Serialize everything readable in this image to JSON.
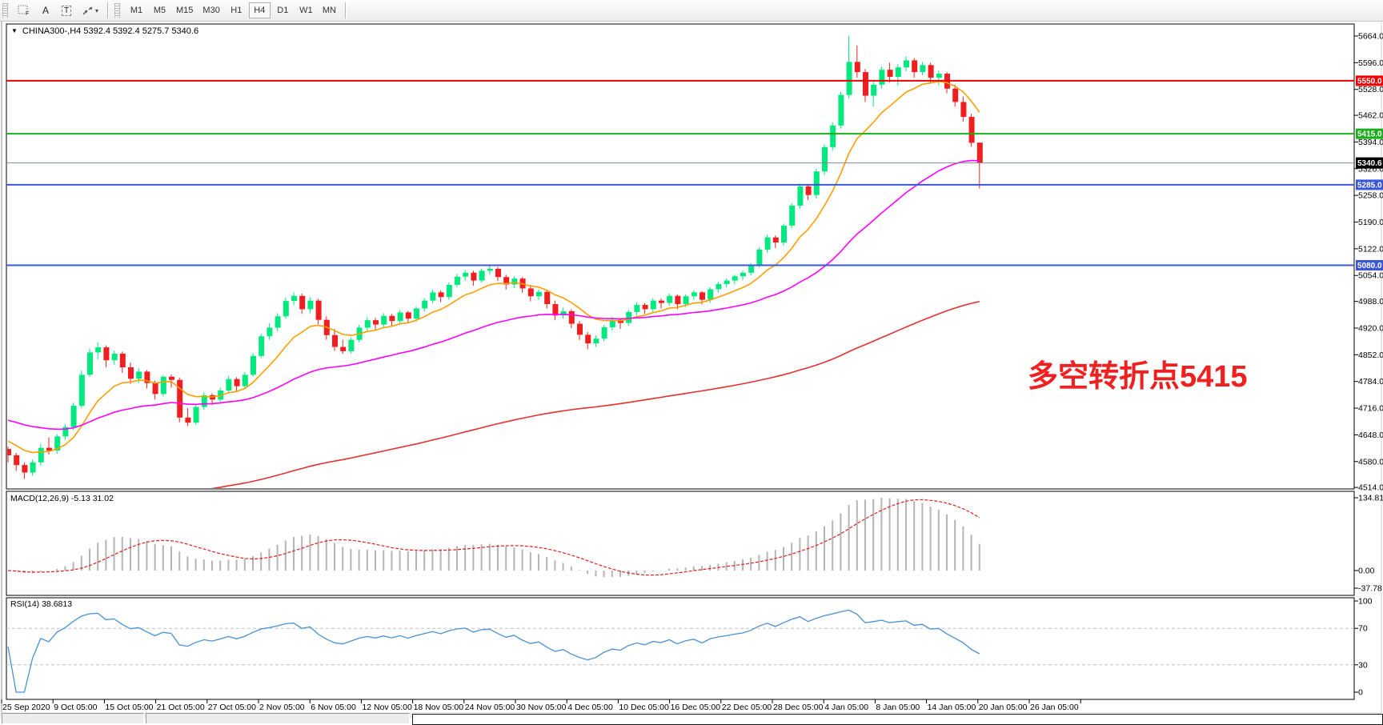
{
  "toolbar": {
    "icons": [
      {
        "name": "grid-f-icon",
        "glyph": "F"
      },
      {
        "name": "font-a-icon",
        "glyph": "A"
      },
      {
        "name": "text-t-icon",
        "glyph": "T"
      },
      {
        "name": "cursor-arrows-icon",
        "glyph": "⇲"
      },
      {
        "name": "caret-down-icon",
        "glyph": "▾"
      }
    ],
    "timeframes": [
      {
        "label": "M1"
      },
      {
        "label": "M5"
      },
      {
        "label": "M15"
      },
      {
        "label": "M30"
      },
      {
        "label": "H1"
      },
      {
        "label": "H4"
      },
      {
        "label": "D1"
      },
      {
        "label": "W1"
      },
      {
        "label": "MN"
      }
    ],
    "active_timeframe": "H4"
  },
  "chart": {
    "title_text": "CHINA300-,H4  5392.4 5392.4 5275.7 5340.6",
    "dropdown_glyph": "▼",
    "annotation": {
      "text": "多空转折点5415",
      "color": "#ef2020"
    }
  },
  "chart_data": {
    "type": "candlestick",
    "symbol": "CHINA300-",
    "period": "H4",
    "ohlc_current": {
      "open": 5392.4,
      "high": 5392.4,
      "low": 5275.7,
      "close": 5340.6
    },
    "last_price": "5340.6",
    "candle_colors": {
      "up": "#00e97e",
      "down": "#f01e1e"
    },
    "price_axis": {
      "ticks": [
        "5664.0",
        "5596.0",
        "5528.0",
        "5462.0",
        "5394.0",
        "5326.0",
        "5258.0",
        "5190.0",
        "5122.0",
        "5054.0",
        "4988.0",
        "4920.0",
        "4852.0",
        "4784.0",
        "4716.0",
        "4648.0",
        "4580.0",
        "4514.0"
      ],
      "top_value": 5664,
      "bottom_value": 4514
    },
    "hlines": [
      {
        "value": 5550.0,
        "label": "5550.0",
        "color": "#ee0000",
        "width": 2
      },
      {
        "value": 5415.0,
        "label": "5415.0",
        "color": "#1cae1c",
        "width": 2
      },
      {
        "value": 5285.0,
        "label": "5285.0",
        "color": "#3a57d7",
        "width": 2
      },
      {
        "value": 5080.0,
        "label": "5080.0",
        "color": "#3a57d7",
        "width": 2
      }
    ],
    "bid_line": {
      "value": 5340.6,
      "label": "5340.6",
      "line_color": "#808898",
      "badge_color": "#000000"
    },
    "moving_averages": [
      {
        "name": "fast-ma",
        "period": 10,
        "seed": 4640,
        "color": "#ff9e00"
      },
      {
        "name": "medium-ma",
        "period": 40,
        "seed": 4690,
        "color": "#ff00ff"
      },
      {
        "name": "slow-ma",
        "period": 150,
        "seed": 4420,
        "color": "#e43030"
      }
    ],
    "candles": [
      [
        4612,
        4618,
        4578,
        4596
      ],
      [
        4596,
        4602,
        4556,
        4571
      ],
      [
        4571,
        4578,
        4536,
        4552
      ],
      [
        4552,
        4585,
        4544,
        4578
      ],
      [
        4578,
        4625,
        4570,
        4615
      ],
      [
        4615,
        4641,
        4598,
        4608
      ],
      [
        4608,
        4650,
        4600,
        4644
      ],
      [
        4644,
        4676,
        4635,
        4668
      ],
      [
        4668,
        4730,
        4660,
        4722
      ],
      [
        4722,
        4812,
        4716,
        4801
      ],
      [
        4801,
        4868,
        4795,
        4858
      ],
      [
        4858,
        4884,
        4840,
        4871
      ],
      [
        4871,
        4876,
        4820,
        4838
      ],
      [
        4838,
        4862,
        4826,
        4855
      ],
      [
        4855,
        4860,
        4806,
        4820
      ],
      [
        4820,
        4832,
        4778,
        4791
      ],
      [
        4791,
        4818,
        4780,
        4809
      ],
      [
        4809,
        4813,
        4766,
        4780
      ],
      [
        4780,
        4786,
        4738,
        4752
      ],
      [
        4752,
        4800,
        4746,
        4796
      ],
      [
        4796,
        4802,
        4768,
        4788
      ],
      [
        4788,
        4794,
        4680,
        4692
      ],
      [
        4692,
        4716,
        4670,
        4679
      ],
      [
        4679,
        4726,
        4674,
        4719
      ],
      [
        4719,
        4756,
        4712,
        4749
      ],
      [
        4749,
        4754,
        4724,
        4738
      ],
      [
        4738,
        4768,
        4730,
        4761
      ],
      [
        4761,
        4798,
        4755,
        4790
      ],
      [
        4790,
        4795,
        4760,
        4772
      ],
      [
        4772,
        4808,
        4766,
        4801
      ],
      [
        4801,
        4856,
        4796,
        4849
      ],
      [
        4849,
        4906,
        4843,
        4899
      ],
      [
        4899,
        4932,
        4890,
        4921
      ],
      [
        4921,
        4958,
        4912,
        4950
      ],
      [
        4950,
        4998,
        4944,
        4989
      ],
      [
        4989,
        5011,
        4978,
        5002
      ],
      [
        5002,
        5008,
        4956,
        4968
      ],
      [
        4968,
        4999,
        4958,
        4990
      ],
      [
        4990,
        4994,
        4930,
        4941
      ],
      [
        4941,
        4950,
        4890,
        4902
      ],
      [
        4902,
        4918,
        4862,
        4872
      ],
      [
        4872,
        4890,
        4854,
        4861
      ],
      [
        4861,
        4896,
        4855,
        4890
      ],
      [
        4890,
        4928,
        4884,
        4921
      ],
      [
        4921,
        4948,
        4912,
        4940
      ],
      [
        4940,
        4946,
        4916,
        4929
      ],
      [
        4929,
        4958,
        4922,
        4951
      ],
      [
        4951,
        4956,
        4926,
        4938
      ],
      [
        4938,
        4966,
        4930,
        4960
      ],
      [
        4960,
        4964,
        4934,
        4944
      ],
      [
        4944,
        4975,
        4936,
        4970
      ],
      [
        4970,
        4996,
        4962,
        4990
      ],
      [
        4990,
        5018,
        4984,
        5011
      ],
      [
        5011,
        5016,
        4986,
        4999
      ],
      [
        4999,
        5036,
        4992,
        5030
      ],
      [
        5030,
        5058,
        5024,
        5051
      ],
      [
        5051,
        5068,
        5040,
        5061
      ],
      [
        5061,
        5066,
        5028,
        5041
      ],
      [
        5041,
        5072,
        5036,
        5066
      ],
      [
        5066,
        5080,
        5056,
        5071
      ],
      [
        5071,
        5076,
        5040,
        5050
      ],
      [
        5050,
        5056,
        5018,
        5031
      ],
      [
        5031,
        5052,
        5022,
        5046
      ],
      [
        5046,
        5050,
        5010,
        5021
      ],
      [
        5021,
        5030,
        4988,
        5001
      ],
      [
        5001,
        5018,
        4992,
        5012
      ],
      [
        5012,
        5016,
        4970,
        4981
      ],
      [
        4981,
        4990,
        4940,
        4952
      ],
      [
        4952,
        4972,
        4944,
        4963
      ],
      [
        4963,
        4968,
        4920,
        4931
      ],
      [
        4931,
        4938,
        4890,
        4903
      ],
      [
        4903,
        4910,
        4866,
        4881
      ],
      [
        4881,
        4902,
        4872,
        4893
      ],
      [
        4893,
        4928,
        4886,
        4922
      ],
      [
        4922,
        4949,
        4914,
        4941
      ],
      [
        4941,
        4945,
        4918,
        4933
      ],
      [
        4933,
        4966,
        4926,
        4961
      ],
      [
        4961,
        4986,
        4952,
        4979
      ],
      [
        4979,
        4984,
        4956,
        4968
      ],
      [
        4968,
        4996,
        4960,
        4990
      ],
      [
        4990,
        4995,
        4970,
        4984
      ],
      [
        4984,
        5008,
        4976,
        5002
      ],
      [
        5002,
        5006,
        4968,
        4981
      ],
      [
        4981,
        5006,
        4974,
        5001
      ],
      [
        5001,
        5016,
        4992,
        5011
      ],
      [
        5011,
        5014,
        4980,
        4992
      ],
      [
        4992,
        5024,
        4984,
        5019
      ],
      [
        5019,
        5038,
        5010,
        5032
      ],
      [
        5032,
        5046,
        5024,
        5041
      ],
      [
        5041,
        5056,
        5032,
        5052
      ],
      [
        5052,
        5066,
        5042,
        5061
      ],
      [
        5061,
        5086,
        5054,
        5081
      ],
      [
        5081,
        5126,
        5074,
        5120
      ],
      [
        5120,
        5158,
        5112,
        5151
      ],
      [
        5151,
        5156,
        5124,
        5138
      ],
      [
        5138,
        5186,
        5130,
        5181
      ],
      [
        5181,
        5238,
        5174,
        5232
      ],
      [
        5232,
        5288,
        5224,
        5281
      ],
      [
        5281,
        5286,
        5246,
        5259
      ],
      [
        5259,
        5326,
        5250,
        5319
      ],
      [
        5319,
        5388,
        5310,
        5381
      ],
      [
        5381,
        5444,
        5372,
        5436
      ],
      [
        5436,
        5522,
        5428,
        5514
      ],
      [
        5514,
        5664,
        5506,
        5598
      ],
      [
        5598,
        5640,
        5558,
        5572
      ],
      [
        5572,
        5580,
        5496,
        5512
      ],
      [
        5512,
        5548,
        5484,
        5540
      ],
      [
        5540,
        5586,
        5530,
        5578
      ],
      [
        5578,
        5596,
        5546,
        5560
      ],
      [
        5560,
        5592,
        5538,
        5584
      ],
      [
        5584,
        5612,
        5574,
        5602
      ],
      [
        5602,
        5608,
        5558,
        5572
      ],
      [
        5572,
        5598,
        5564,
        5590
      ],
      [
        5590,
        5596,
        5546,
        5558
      ],
      [
        5558,
        5576,
        5538,
        5568
      ],
      [
        5568,
        5572,
        5518,
        5530
      ],
      [
        5530,
        5540,
        5484,
        5496
      ],
      [
        5496,
        5510,
        5446,
        5458
      ],
      [
        5458,
        5466,
        5382,
        5392
      ],
      [
        5392.4,
        5392.4,
        5275.7,
        5340.6
      ]
    ],
    "time_axis": {
      "labels": [
        "25 Sep 2020",
        "9 Oct 05:00",
        "15 Oct 05:00",
        "21 Oct 05:00",
        "27 Oct 05:00",
        "2 Nov 05:00",
        "6 Nov 05:00",
        "12 Nov 05:00",
        "18 Nov 05:00",
        "24 Nov 05:00",
        "30 Nov 05:00",
        "4 Dec 05:00",
        "10 Dec 05:00",
        "16 Dec 05:00",
        "22 Dec 05:00",
        "28 Dec 05:00",
        "4 Jan 05:00",
        "8 Jan 05:00",
        "14 Jan 05:00",
        "20 Jan 05:00",
        "26 Jan 05:00"
      ]
    },
    "indicators": [
      {
        "name": "MACD",
        "label": "MACD(12,26,9) -5.13 31.02",
        "params": [
          12,
          26,
          9
        ],
        "current_values": [
          "-5.13",
          "31.02"
        ],
        "axis_ticks": [
          "134.81",
          "0.00",
          "-37.78"
        ],
        "histogram_color": "#b4b4b4",
        "signal_color": "#e02020"
      },
      {
        "name": "RSI",
        "label": "RSI(14) 38.6813",
        "period": 14,
        "current_value": "38.6813",
        "axis_ticks": [
          "100",
          "70",
          "30",
          "0"
        ],
        "levels": [
          70,
          30
        ],
        "line_color": "#4a90d2"
      }
    ]
  }
}
